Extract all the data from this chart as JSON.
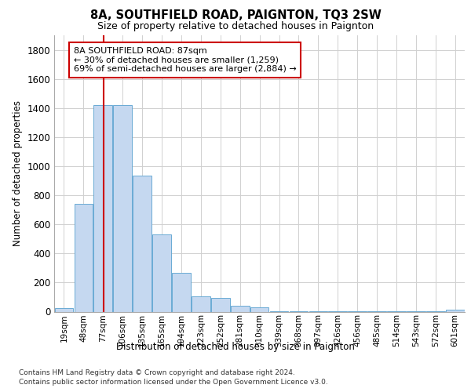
{
  "title_line1": "8A, SOUTHFIELD ROAD, PAIGNTON, TQ3 2SW",
  "title_line2": "Size of property relative to detached houses in Paignton",
  "xlabel": "Distribution of detached houses by size in Paignton",
  "ylabel": "Number of detached properties",
  "categories": [
    "19sqm",
    "48sqm",
    "77sqm",
    "106sqm",
    "135sqm",
    "165sqm",
    "194sqm",
    "223sqm",
    "252sqm",
    "281sqm",
    "310sqm",
    "339sqm",
    "368sqm",
    "397sqm",
    "426sqm",
    "456sqm",
    "485sqm",
    "514sqm",
    "543sqm",
    "572sqm",
    "601sqm"
  ],
  "values": [
    22,
    742,
    1421,
    1421,
    937,
    530,
    265,
    103,
    93,
    40,
    28,
    5,
    5,
    5,
    5,
    5,
    5,
    5,
    5,
    5,
    15
  ],
  "bar_color": "#c5d8f0",
  "bar_edge_color": "#6aaad4",
  "grid_color": "#d0d0d0",
  "background_color": "#ffffff",
  "annotation_line1": "8A SOUTHFIELD ROAD: 87sqm",
  "annotation_line2": "← 30% of detached houses are smaller (1,259)",
  "annotation_line3": "69% of semi-detached houses are larger (2,884) →",
  "vline_color": "#cc0000",
  "box_edgecolor": "#cc0000",
  "ylim": [
    0,
    1900
  ],
  "yticks": [
    0,
    200,
    400,
    600,
    800,
    1000,
    1200,
    1400,
    1600,
    1800
  ],
  "footnote_line1": "Contains HM Land Registry data © Crown copyright and database right 2024.",
  "footnote_line2": "Contains public sector information licensed under the Open Government Licence v3.0.",
  "vline_bar_index": 2
}
